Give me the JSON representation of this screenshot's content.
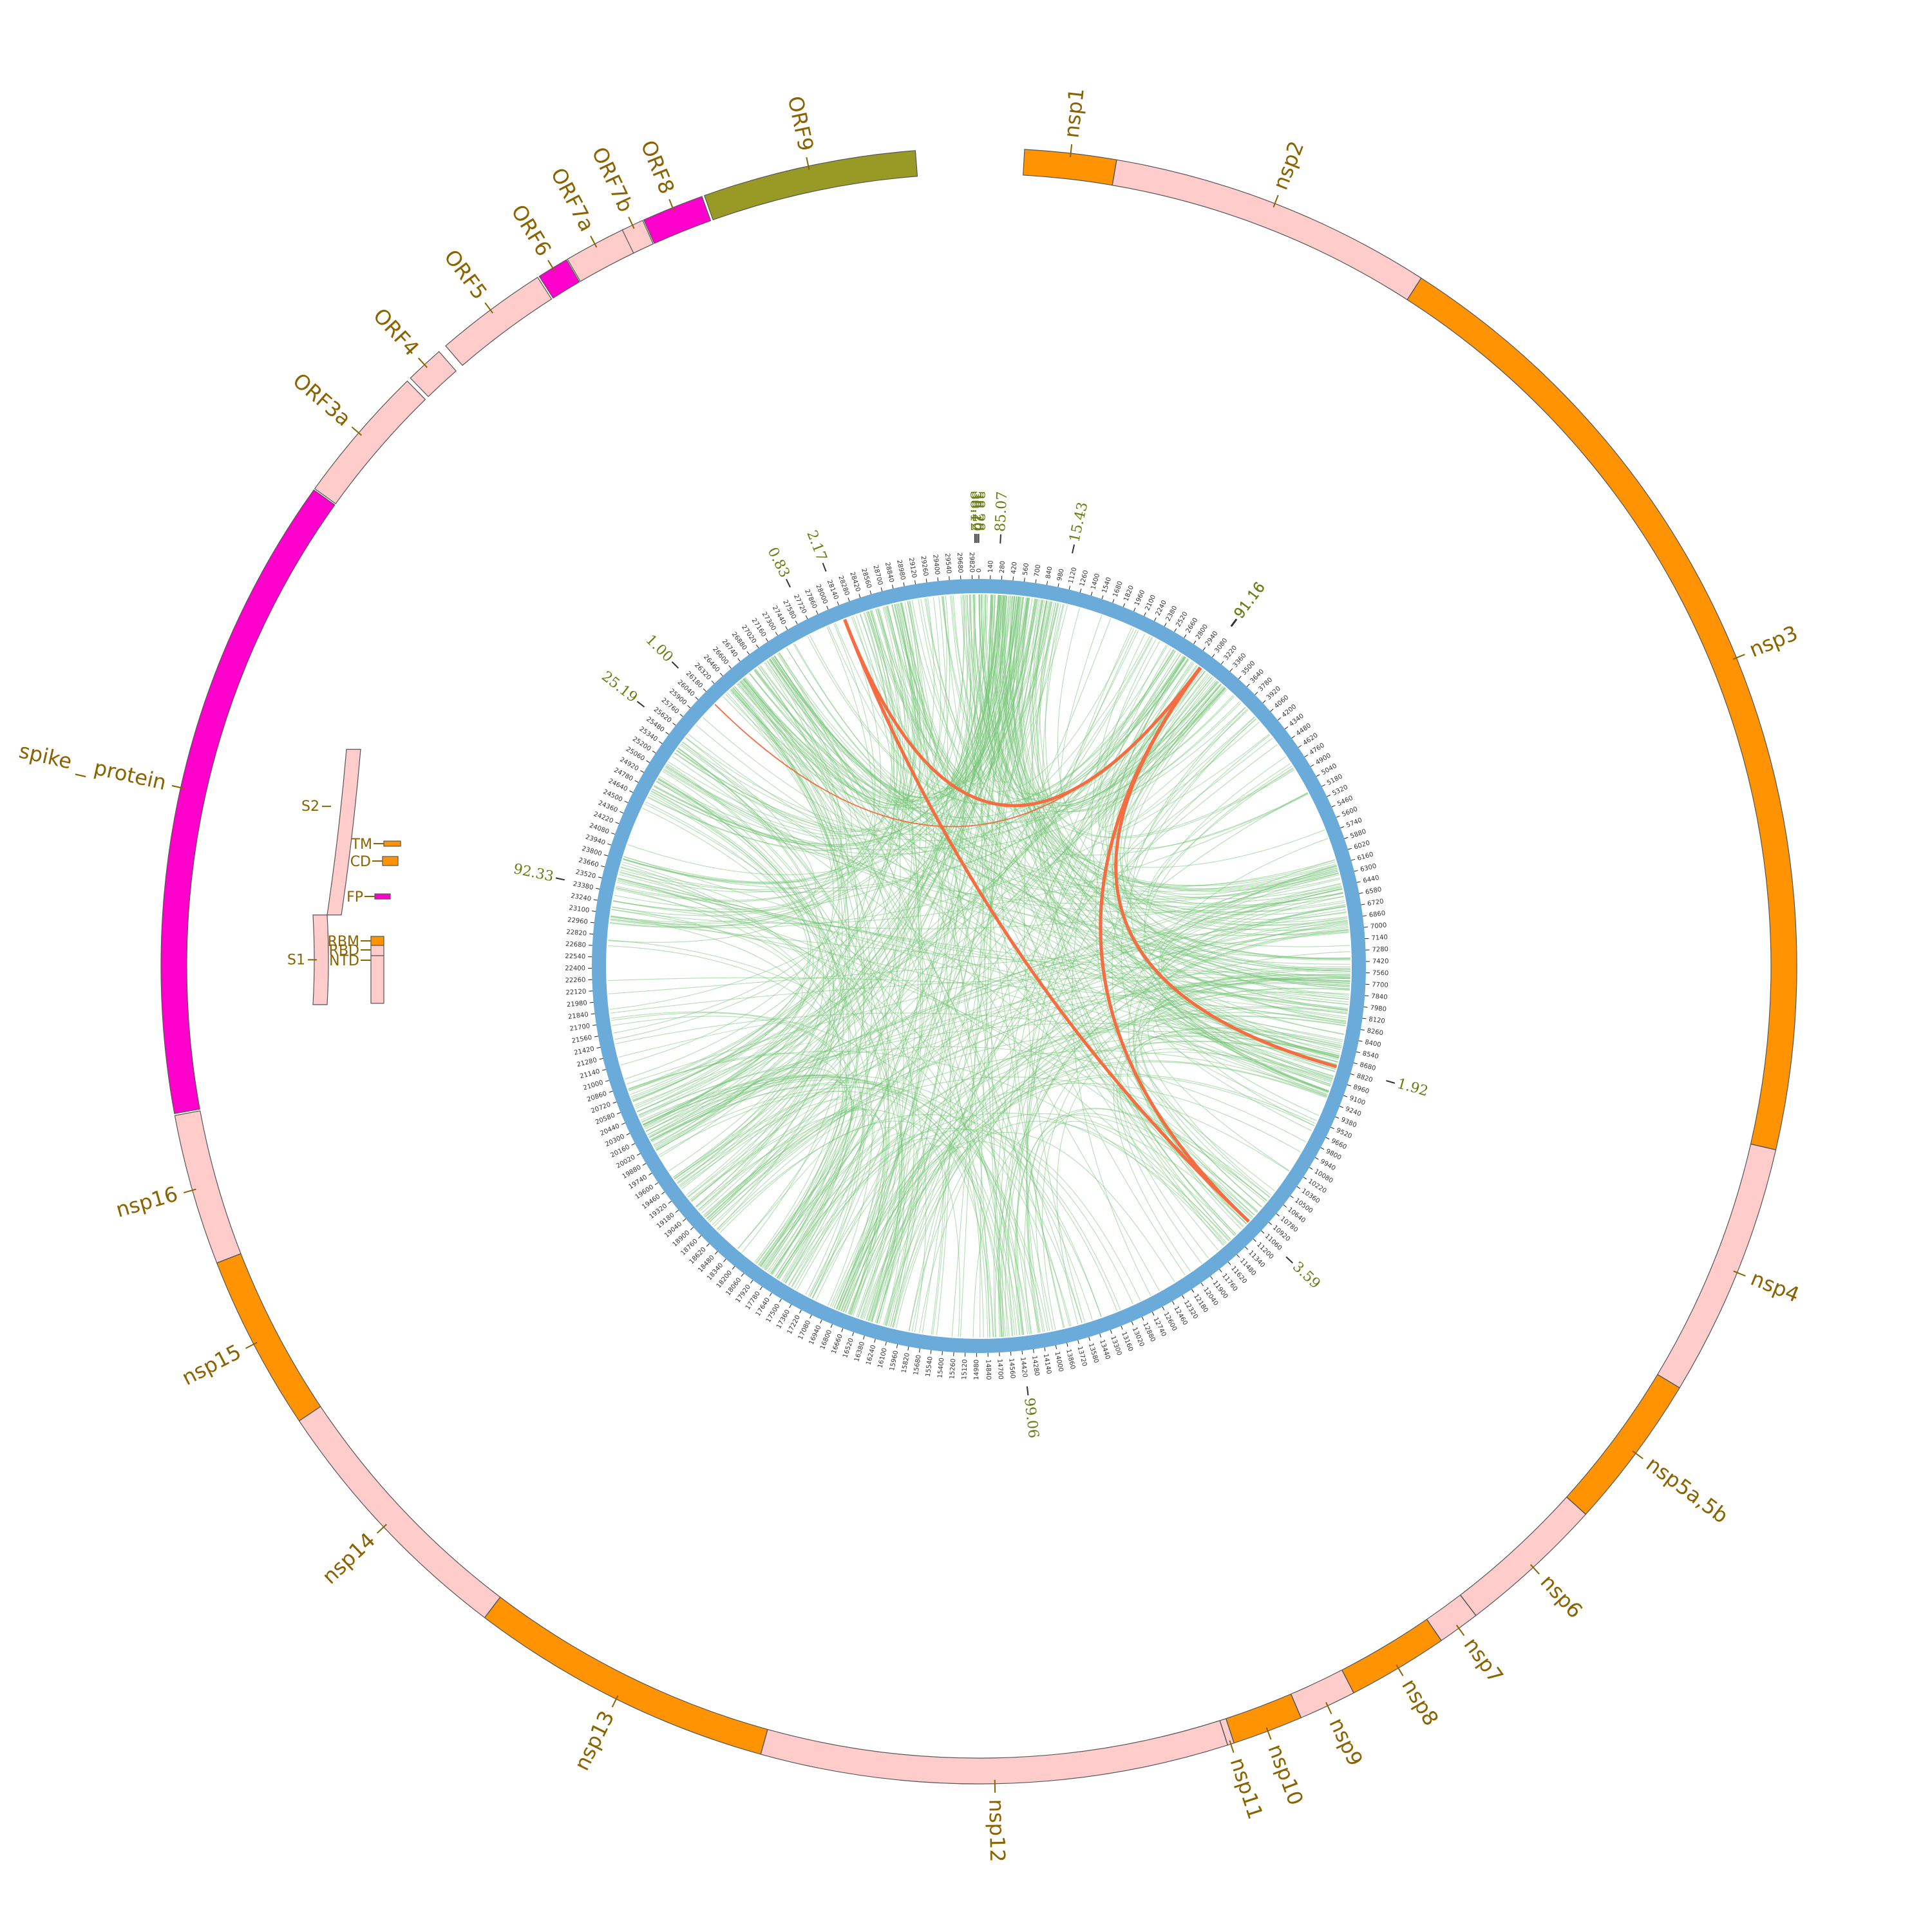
{
  "genes": [
    {
      "name": "nsp1",
      "start": 266,
      "end": 805,
      "color": "#ff9302"
    },
    {
      "name": "nsp2",
      "start": 806,
      "end": 2719,
      "color": "#ffcccc"
    },
    {
      "name": "nsp3",
      "start": 2720,
      "end": 8554,
      "color": "#ff9302"
    },
    {
      "name": "nsp4",
      "start": 8555,
      "end": 10054,
      "color": "#ffcccc"
    },
    {
      "name": "nsp5a,5b",
      "start": 10055,
      "end": 10972,
      "color": "#ff9302"
    },
    {
      "name": "nsp6",
      "start": 10973,
      "end": 11842,
      "color": "#ffcccc"
    },
    {
      "name": "nsp7",
      "start": 11843,
      "end": 12091,
      "color": "#ffcccc"
    },
    {
      "name": "nsp8",
      "start": 12092,
      "end": 12685,
      "color": "#ff9302"
    },
    {
      "name": "nsp9",
      "start": 12686,
      "end": 13024,
      "color": "#ffcccc"
    },
    {
      "name": "nsp10",
      "start": 13025,
      "end": 13441,
      "color": "#ff9302"
    },
    {
      "name": "nsp11",
      "start": 13442,
      "end": 13480,
      "color": "#ffcccc"
    },
    {
      "name": "nsp12",
      "start": 13481,
      "end": 16236,
      "color": "#ffcccc"
    },
    {
      "name": "nsp13",
      "start": 16237,
      "end": 18039,
      "color": "#ff9302"
    },
    {
      "name": "nsp14",
      "start": 18040,
      "end": 19620,
      "color": "#ffcccc"
    },
    {
      "name": "nsp15",
      "start": 19621,
      "end": 20658,
      "color": "#ff9302"
    },
    {
      "name": "nsp16",
      "start": 20659,
      "end": 21552,
      "color": "#ffcccc"
    },
    {
      "name": "spike_protein",
      "start": 21563,
      "end": 25384,
      "color": "#ff00cc"
    },
    {
      "name": "ORF3a",
      "start": 25393,
      "end": 26220,
      "color": "#ffcccc"
    },
    {
      "name": "ORF4",
      "start": 26245,
      "end": 26472,
      "color": "#ffcccc"
    },
    {
      "name": "ORF5",
      "start": 26523,
      "end": 27191,
      "color": "#ffcccc"
    },
    {
      "name": "ORF6",
      "start": 27202,
      "end": 27387,
      "color": "#ff00cc"
    },
    {
      "name": "ORF7a",
      "start": 27394,
      "end": 27759,
      "color": "#ffcccc"
    },
    {
      "name": "ORF7b",
      "start": 27756,
      "end": 27887,
      "color": "#ffcccc"
    },
    {
      "name": "ORF8",
      "start": 27894,
      "end": 28259,
      "color": "#ff00cc"
    },
    {
      "name": "ORF9",
      "start": 28274,
      "end": 29533,
      "color": "#999926"
    }
  ],
  "gene_display": {
    "nsp1": "nsp1",
    "nsp2": "nsp2",
    "nsp3": "nsp3",
    "nsp4": "nsp4",
    "nsp5a,5b": "nsp5a,5b",
    "nsp6": "nsp6",
    "nsp7": "nsp7",
    "nsp8": "nsp8",
    "nsp9": "nsp9",
    "nsp10": "nsp10",
    "nsp11": "nsp11",
    "nsp12": "nsp12",
    "nsp13": "nsp13",
    "nsp14": "nsp14",
    "nsp15": "nsp15",
    "nsp16": "nsp16",
    "spike_protein": "spike _ protein",
    "ORF3a": "ORF3a",
    "ORF4": "ORF4",
    "ORF5": "ORF5",
    "ORF6": "ORF6",
    "ORF7a": "ORF7a",
    "ORF7b": "ORF7b",
    "ORF8": "ORF8",
    "ORF9": "ORF9"
  },
  "spike_domains": {
    "subunits": [
      {
        "name": "S2",
        "start": 22830,
        "end": 25170,
        "color": "#ffcccc"
      },
      {
        "name": "S1",
        "start": 21563,
        "end": 22830,
        "color": "#ffcccc"
      }
    ],
    "domains": [
      {
        "name": "TM",
        "start": 24580,
        "end": 24620,
        "color": "#ff9302"
      },
      {
        "name": "CD",
        "start": 24400,
        "end": 24520,
        "color": "#ff9302"
      },
      {
        "name": "FP",
        "start": 23960,
        "end": 24000,
        "color": "#ff00cc"
      },
      {
        "name": "RBM",
        "start": 22520,
        "end": 22740,
        "color": "#ff9302"
      },
      {
        "name": "RBD",
        "start": 22370,
        "end": 22560,
        "color": "#ffcccc"
      },
      {
        "name": "NTD",
        "start": 21600,
        "end": 22350,
        "color": "#ffcccc"
      }
    ]
  },
  "genome_length": 29903,
  "tick_step": 140,
  "inner_ring_color": "#6aabd9",
  "link_colors": {
    "normal": "#74c476",
    "highlight": "#f46d43"
  },
  "value_labels": [
    {
      "label": "38.20",
      "pos": 29880
    },
    {
      "label": "38.12",
      "pos": 29860
    },
    {
      "label": "38.28",
      "pos": 29900
    },
    {
      "label": "85.07",
      "pos": 241
    },
    {
      "label": "15.43",
      "pos": 1059
    },
    {
      "label": "91.16",
      "pos": 3037
    },
    {
      "label": "91.16",
      "pos": 3044
    },
    {
      "label": "1.92",
      "pos": 8782
    },
    {
      "label": "3.59",
      "pos": 11083
    },
    {
      "label": "99.06",
      "pos": 14408
    },
    {
      "label": "92.33",
      "pos": 23403
    },
    {
      "label": "25.19",
      "pos": 25563
    },
    {
      "label": "1.00",
      "pos": 26144
    },
    {
      "label": "0.83",
      "pos": 27704
    },
    {
      "label": "2.17",
      "pos": 28144
    }
  ],
  "highlight_links": [
    {
      "from": 28144,
      "to": 3037
    },
    {
      "from": 28144,
      "to": 11083
    },
    {
      "from": 3044,
      "to": 8782
    },
    {
      "from": 3037,
      "to": 11083
    },
    {
      "from": 26144,
      "to": 3037
    }
  ]
}
